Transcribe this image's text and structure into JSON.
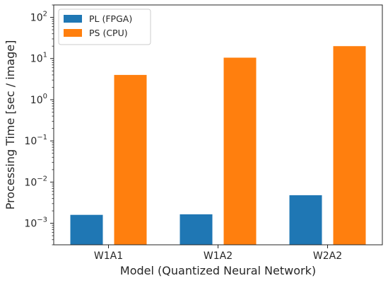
{
  "chart_data": {
    "type": "bar",
    "categories": [
      "W1A1",
      "W1A2",
      "W2A2"
    ],
    "series": [
      {
        "name": "PL (FPGA)",
        "color": "#1f77b4",
        "values": [
          0.0016,
          0.00165,
          0.0048
        ]
      },
      {
        "name": "PS (CPU)",
        "color": "#ff7f0e",
        "values": [
          4.0,
          10.5,
          20.0
        ]
      }
    ],
    "xlabel": "Model (Quantized Neural Network)",
    "ylabel": "Processing Time [sec / image]",
    "yscale": "log",
    "ylim": [
      0.0003,
      200
    ],
    "yticks": [
      {
        "value": 0.001,
        "base": "10",
        "exp": "−3"
      },
      {
        "value": 0.01,
        "base": "10",
        "exp": "−2"
      },
      {
        "value": 0.1,
        "base": "10",
        "exp": "−1"
      },
      {
        "value": 1,
        "base": "10",
        "exp": "0"
      },
      {
        "value": 10,
        "base": "10",
        "exp": "1"
      },
      {
        "value": 100,
        "base": "10",
        "exp": "2"
      }
    ],
    "legend_position": "top-left",
    "grid": false
  }
}
